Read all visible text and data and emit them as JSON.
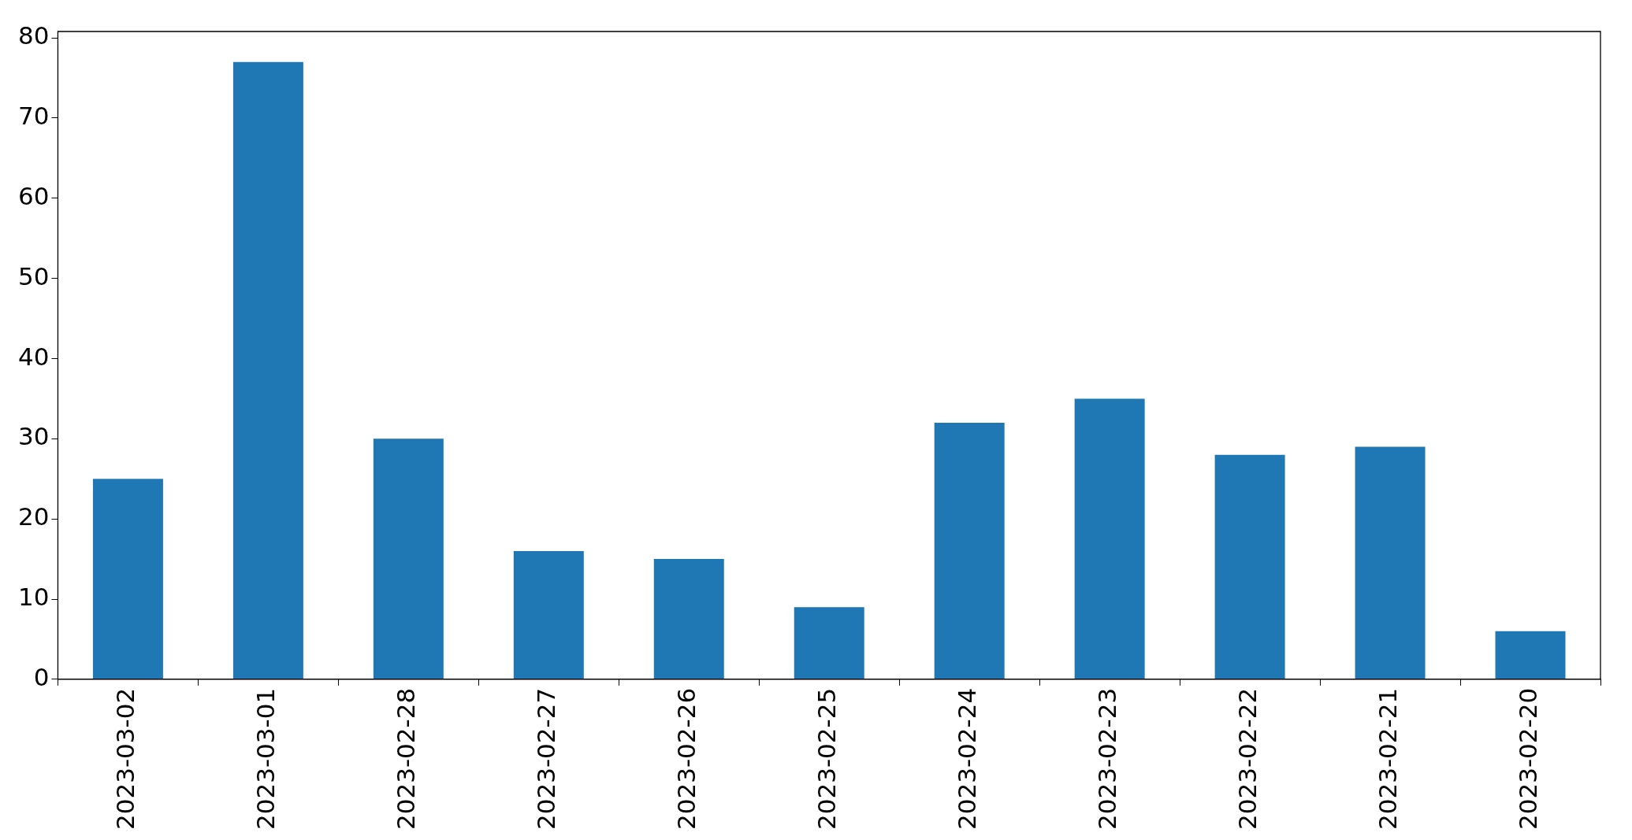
{
  "chart_data": {
    "type": "bar",
    "categories": [
      "2023-03-02",
      "2023-03-01",
      "2023-02-28",
      "2023-02-27",
      "2023-02-26",
      "2023-02-25",
      "2023-02-24",
      "2023-02-23",
      "2023-02-22",
      "2023-02-21",
      "2023-02-20"
    ],
    "values": [
      25,
      77,
      30,
      16,
      15,
      9,
      32,
      35,
      28,
      29,
      6
    ],
    "color": "#1f77b4",
    "ylim": [
      0,
      80.8
    ],
    "yticks": [
      0,
      10,
      20,
      30,
      40,
      50,
      60,
      70,
      80
    ],
    "grid": false,
    "legend": false
  }
}
